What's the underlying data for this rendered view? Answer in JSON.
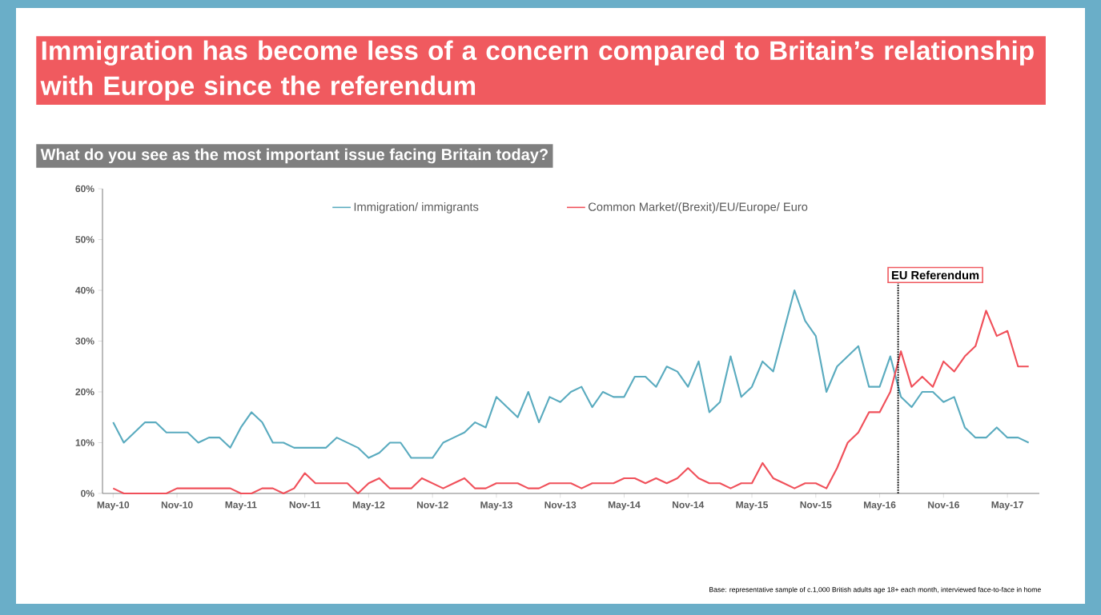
{
  "chart_data": {
    "type": "line",
    "title": "Immigration has become less of a concern compared to Britain’s relationship with Europe since the referendum",
    "subtitle": "What do you see as the most important issue facing Britain today?",
    "x": [
      "2010-05",
      "2010-06",
      "2010-07",
      "2010-08",
      "2010-09",
      "2010-10",
      "2010-11",
      "2010-12",
      "2011-01",
      "2011-02",
      "2011-03",
      "2011-04",
      "2011-05",
      "2011-06",
      "2011-07",
      "2011-08",
      "2011-09",
      "2011-10",
      "2011-11",
      "2011-12",
      "2012-01",
      "2012-02",
      "2012-03",
      "2012-04",
      "2012-05",
      "2012-06",
      "2012-07",
      "2012-08",
      "2012-09",
      "2012-10",
      "2012-11",
      "2012-12",
      "2013-01",
      "2013-02",
      "2013-03",
      "2013-04",
      "2013-05",
      "2013-06",
      "2013-07",
      "2013-08",
      "2013-09",
      "2013-10",
      "2013-11",
      "2013-12",
      "2014-01",
      "2014-02",
      "2014-03",
      "2014-04",
      "2014-05",
      "2014-06",
      "2014-07",
      "2014-08",
      "2014-09",
      "2014-10",
      "2014-11",
      "2014-12",
      "2015-01",
      "2015-02",
      "2015-03",
      "2015-04",
      "2015-05",
      "2015-06",
      "2015-07",
      "2015-08",
      "2015-09",
      "2015-10",
      "2015-11",
      "2015-12",
      "2016-01",
      "2016-02",
      "2016-03",
      "2016-04",
      "2016-05",
      "2016-06",
      "2016-07",
      "2016-08",
      "2016-09",
      "2016-10",
      "2016-11",
      "2016-12",
      "2017-01",
      "2017-02",
      "2017-03",
      "2017-04",
      "2017-05",
      "2017-06",
      "2017-07"
    ],
    "series": [
      {
        "name": "Immigration/ immigrants",
        "color": "#5aabbf",
        "values": [
          14,
          10,
          12,
          14,
          14,
          12,
          12,
          12,
          10,
          11,
          11,
          9,
          13,
          16,
          14,
          10,
          10,
          9,
          9,
          9,
          9,
          11,
          10,
          9,
          7,
          8,
          10,
          10,
          7,
          7,
          7,
          10,
          11,
          12,
          14,
          13,
          19,
          17,
          15,
          20,
          14,
          19,
          18,
          20,
          21,
          17,
          20,
          19,
          19,
          23,
          23,
          21,
          25,
          24,
          21,
          26,
          16,
          18,
          27,
          19,
          21,
          26,
          24,
          32,
          40,
          34,
          31,
          20,
          25,
          27,
          29,
          21,
          21,
          27,
          19,
          17,
          20,
          20,
          18,
          19,
          13,
          11,
          11,
          13,
          11,
          11,
          10
        ]
      },
      {
        "name": "Common Market/(Brexit)/EU/Europe/ Euro",
        "color": "#f0505a",
        "values": [
          1,
          0,
          0,
          0,
          0,
          0,
          1,
          1,
          1,
          1,
          1,
          1,
          0,
          0,
          1,
          1,
          0,
          1,
          4,
          2,
          2,
          2,
          2,
          0,
          2,
          3,
          1,
          1,
          1,
          3,
          2,
          1,
          2,
          3,
          1,
          1,
          2,
          2,
          2,
          1,
          1,
          2,
          2,
          2,
          1,
          2,
          2,
          2,
          3,
          3,
          2,
          3,
          2,
          3,
          5,
          3,
          2,
          2,
          1,
          2,
          2,
          6,
          3,
          2,
          1,
          2,
          2,
          1,
          5,
          10,
          12,
          16,
          16,
          20,
          28,
          21,
          23,
          21,
          26,
          24,
          27,
          29,
          36,
          31,
          32,
          25,
          25
        ]
      }
    ],
    "xlim": [
      "2010-04",
      "2017-08"
    ],
    "xticks": [
      {
        "value": "2010-05",
        "label": "May-10"
      },
      {
        "value": "2010-11",
        "label": "Nov-10"
      },
      {
        "value": "2011-05",
        "label": "May-11"
      },
      {
        "value": "2011-11",
        "label": "Nov-11"
      },
      {
        "value": "2012-05",
        "label": "May-12"
      },
      {
        "value": "2012-11",
        "label": "Nov-12"
      },
      {
        "value": "2013-05",
        "label": "May-13"
      },
      {
        "value": "2013-11",
        "label": "Nov-13"
      },
      {
        "value": "2014-05",
        "label": "May-14"
      },
      {
        "value": "2014-11",
        "label": "Nov-14"
      },
      {
        "value": "2015-05",
        "label": "May-15"
      },
      {
        "value": "2015-11",
        "label": "Nov-15"
      },
      {
        "value": "2016-05",
        "label": "May-16"
      },
      {
        "value": "2016-11",
        "label": "Nov-16"
      },
      {
        "value": "2017-05",
        "label": "May-17"
      }
    ],
    "ylim": [
      0,
      60
    ],
    "yticks": [
      {
        "value": 0,
        "label": "0%"
      },
      {
        "value": 10,
        "label": "10%"
      },
      {
        "value": 20,
        "label": "20%"
      },
      {
        "value": 30,
        "label": "30%"
      },
      {
        "value": 40,
        "label": "40%"
      },
      {
        "value": 50,
        "label": "50%"
      },
      {
        "value": 60,
        "label": "60%"
      }
    ],
    "ref_lines": [
      {
        "axis": "x",
        "value": "2016-06-23",
        "label": "EU Referendum",
        "color": "#000000",
        "line_style": "dotted"
      }
    ],
    "legend": "top",
    "marker": "none",
    "line_style": "solid",
    "annotations": [
      "Base: representative sample of c.1,000 British adults age 18+ each month, interviewed face-to-face in home"
    ]
  }
}
